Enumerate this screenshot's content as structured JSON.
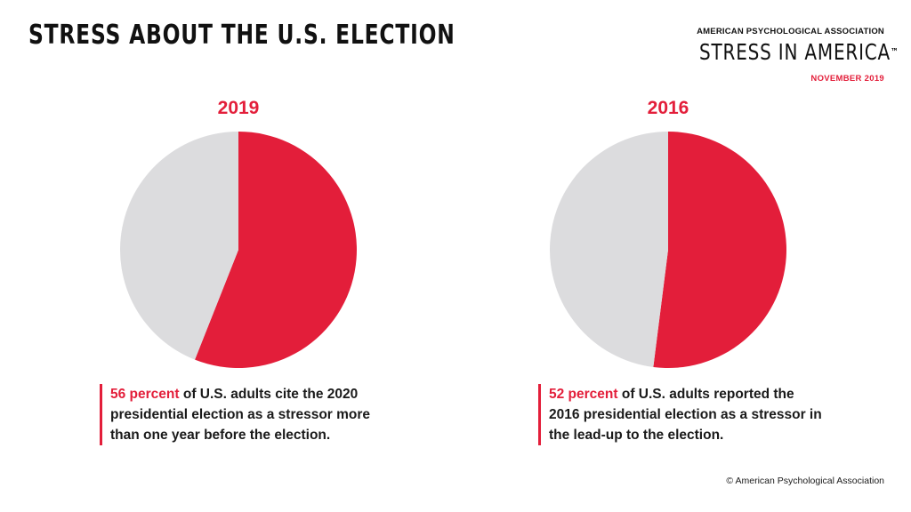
{
  "header": {
    "title": "STRESS ABOUT THE U.S. ELECTION",
    "org": "AMERICAN PSYCHOLOGICAL ASSOCIATION",
    "brand": "STRESS IN AMERICA",
    "brand_mark": "™",
    "date": "NOVEMBER 2019"
  },
  "colors": {
    "accent": "#e31e3a",
    "remainder": "#dcdcde"
  },
  "chart_data": [
    {
      "type": "pie",
      "title": "2019",
      "values": [
        56,
        44
      ],
      "highlight": "56 percent",
      "caption": "of U.S. adults cite the 2020 presidential election as a stressor more than one year before the election."
    },
    {
      "type": "pie",
      "title": "2016",
      "values": [
        52,
        48
      ],
      "highlight": "52 percent",
      "caption": "of U.S. adults reported the 2016 presidential election as a stressor in the lead-up to the election."
    }
  ],
  "footer": {
    "copyright": "© American Psychological Association"
  }
}
